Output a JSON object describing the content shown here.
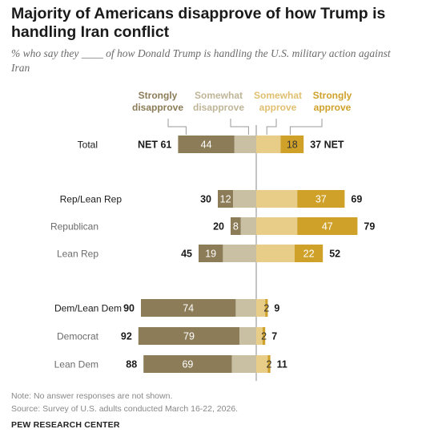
{
  "title": "Majority of Americans disapprove of how Trump is handling Iran conflict",
  "subtitle": "% who say they ____ of how Donald Trump is handling the U.S. military action against Iran",
  "note": "Note: No answer responses are not shown.",
  "source": "Source: Survey of U.S. adults conducted March 16-22, 2026.",
  "org": "PEW RESEARCH CENTER",
  "colors": {
    "strongly_disapprove": "#8c7c57",
    "somewhat_disapprove": "#c9bfa3",
    "somewhat_approve": "#e7cd88",
    "strongly_approve": "#cfa129",
    "legend_disapprove_text": "#8c7c57",
    "legend_somewhat_disapprove_text": "#bfb597",
    "legend_somewhat_approve_text": "#e0c070",
    "legend_strongly_approve_text": "#cfa129"
  },
  "chart_data": {
    "type": "bar",
    "orientation": "horizontal-diverging",
    "legend": {
      "strongly_disapprove": [
        "Strongly",
        "disapprove"
      ],
      "somewhat_disapprove": [
        "Somewhat",
        "disapprove"
      ],
      "somewhat_approve": [
        "Somewhat",
        "approve"
      ],
      "strongly_approve": [
        "Strongly",
        "approve"
      ]
    },
    "rows": [
      {
        "label": "Total",
        "group": "total",
        "net_disapprove_label": "NET 61",
        "net_approve_label": "37 NET",
        "strongly_disapprove": 44,
        "somewhat_disapprove": 17,
        "somewhat_approve": 19,
        "strongly_approve": 18,
        "sd_label": "44",
        "sa_label": "18"
      },
      {
        "label": "Rep/Lean Rep",
        "group": "header",
        "net_disapprove_label": "30",
        "net_approve_label": "69",
        "strongly_disapprove": 12,
        "somewhat_disapprove": 18,
        "somewhat_approve": 32,
        "strongly_approve": 37,
        "sd_label": "12",
        "sa_label": "37"
      },
      {
        "label": "Republican",
        "group": "sub",
        "net_disapprove_label": "20",
        "net_approve_label": "79",
        "strongly_disapprove": 8,
        "somewhat_disapprove": 12,
        "somewhat_approve": 32,
        "strongly_approve": 47,
        "sd_label": "8",
        "sa_label": "47"
      },
      {
        "label": "Lean Rep",
        "group": "sub",
        "net_disapprove_label": "45",
        "net_approve_label": "52",
        "strongly_disapprove": 19,
        "somewhat_disapprove": 26,
        "somewhat_approve": 30,
        "strongly_approve": 22,
        "sd_label": "19",
        "sa_label": "22"
      },
      {
        "label": "Dem/Lean Dem",
        "group": "header",
        "net_disapprove_label": "90",
        "net_approve_label": "9",
        "strongly_disapprove": 74,
        "somewhat_disapprove": 16,
        "somewhat_approve": 7,
        "strongly_approve": 2,
        "sd_label": "74",
        "sa_label": "2"
      },
      {
        "label": "Democrat",
        "group": "sub",
        "net_disapprove_label": "92",
        "net_approve_label": "7",
        "strongly_disapprove": 79,
        "somewhat_disapprove": 13,
        "somewhat_approve": 5,
        "strongly_approve": 2,
        "sd_label": "79",
        "sa_label": "2"
      },
      {
        "label": "Lean Dem",
        "group": "sub",
        "net_disapprove_label": "88",
        "net_approve_label": "11",
        "strongly_disapprove": 69,
        "somewhat_disapprove": 19,
        "somewhat_approve": 9,
        "strongly_approve": 2,
        "sd_label": "69",
        "sa_label": "2"
      }
    ]
  }
}
